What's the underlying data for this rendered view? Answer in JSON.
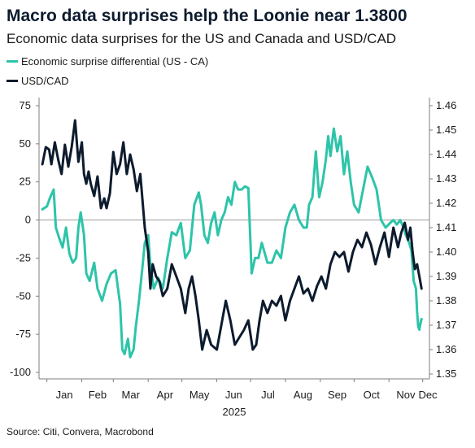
{
  "header": {
    "title": "Macro data surprises help the Loonie near 1.3800",
    "subtitle": "Economic data surprises for the US and Canada and USD/CAD"
  },
  "footer": {
    "source": "Source: Citi, Convera, Macrobond"
  },
  "colors": {
    "surprise": "#2ec4a9",
    "usdcad": "#0d1b2e",
    "zero_line": "#a6a6a6",
    "axis": "#7f7f7f"
  },
  "chart_data": {
    "type": "line",
    "year_label": "2025",
    "x_months": [
      "Jan",
      "Feb",
      "Mar",
      "Apr",
      "May",
      "Jun",
      "Jul",
      "Aug",
      "Sep",
      "Oct",
      "Nov",
      "Dec"
    ],
    "y_left": {
      "ticks": [
        "75",
        "50",
        "25",
        "0",
        "-25",
        "-50",
        "-75",
        "-100"
      ],
      "range": [
        -100,
        75
      ]
    },
    "y_right": {
      "ticks": [
        "1.46",
        "1.45",
        "1.44",
        "1.43",
        "1.42",
        "1.41",
        "1.40",
        "1.39",
        "1.38",
        "1.37",
        "1.36",
        "1.35"
      ],
      "range": [
        1.35,
        1.46
      ]
    },
    "x_range": [
      "2024-12-25",
      "2025-12-07"
    ],
    "series": [
      {
        "name": "Economic surprise differential (US - CA)",
        "axis": "left",
        "x": [
          "2024-12-28",
          "2025-01-01",
          "2025-01-04",
          "2025-01-07",
          "2025-01-09",
          "2025-01-12",
          "2025-01-15",
          "2025-01-18",
          "2025-01-21",
          "2025-01-24",
          "2025-01-27",
          "2025-01-29",
          "2025-01-31",
          "2025-02-03",
          "2025-02-05",
          "2025-02-08",
          "2025-02-12",
          "2025-02-15",
          "2025-02-19",
          "2025-02-23",
          "2025-02-27",
          "2025-03-03",
          "2025-03-07",
          "2025-03-09",
          "2025-03-11",
          "2025-03-14",
          "2025-03-16",
          "2025-03-19",
          "2025-03-21",
          "2025-03-24",
          "2025-03-27",
          "2025-03-29",
          "2025-04-01",
          "2025-04-03",
          "2025-04-06",
          "2025-04-10",
          "2025-04-14",
          "2025-04-18",
          "2025-04-22",
          "2025-04-26",
          "2025-04-30",
          "2025-05-04",
          "2025-05-08",
          "2025-05-12",
          "2025-05-16",
          "2025-05-18",
          "2025-05-21",
          "2025-05-24",
          "2025-05-27",
          "2025-05-30",
          "2025-06-02",
          "2025-06-05",
          "2025-06-08",
          "2025-06-11",
          "2025-06-14",
          "2025-06-17",
          "2025-06-20",
          "2025-06-23",
          "2025-06-26",
          "2025-06-29",
          "2025-07-02",
          "2025-07-05",
          "2025-07-08",
          "2025-07-11",
          "2025-07-16",
          "2025-07-20",
          "2025-07-24",
          "2025-07-28",
          "2025-08-01",
          "2025-08-05",
          "2025-08-09",
          "2025-08-13",
          "2025-08-17",
          "2025-08-20",
          "2025-08-22",
          "2025-08-25",
          "2025-08-28",
          "2025-08-31",
          "2025-09-03",
          "2025-09-06",
          "2025-09-08",
          "2025-09-10",
          "2025-09-13",
          "2025-09-16",
          "2025-09-19",
          "2025-09-22",
          "2025-09-25",
          "2025-09-28",
          "2025-10-01",
          "2025-10-05",
          "2025-10-09",
          "2025-10-13",
          "2025-10-17",
          "2025-10-21",
          "2025-10-25",
          "2025-10-29",
          "2025-11-02",
          "2025-11-05",
          "2025-11-08",
          "2025-11-11",
          "2025-11-14",
          "2025-11-16",
          "2025-11-19",
          "2025-11-21",
          "2025-11-23",
          "2025-11-25",
          "2025-11-26",
          "2025-11-27",
          "2025-11-28",
          "2025-11-29",
          "2025-11-30"
        ],
        "y": [
          7,
          9,
          15,
          20,
          -5,
          -12,
          -18,
          -5,
          -22,
          -28,
          -25,
          -5,
          5,
          -10,
          -35,
          -40,
          -28,
          -45,
          -53,
          -42,
          -35,
          -33,
          -55,
          -85,
          -88,
          -78,
          -90,
          -85,
          -70,
          -52,
          -30,
          -15,
          -10,
          -30,
          -45,
          -38,
          -45,
          -25,
          -8,
          -10,
          -2,
          -25,
          -20,
          10,
          18,
          10,
          -10,
          -15,
          -2,
          5,
          -10,
          0,
          5,
          15,
          10,
          25,
          20,
          20,
          22,
          21,
          -35,
          -25,
          -25,
          -15,
          -28,
          -28,
          -20,
          -25,
          -5,
          5,
          10,
          0,
          -5,
          -5,
          10,
          15,
          45,
          15,
          25,
          40,
          55,
          42,
          60,
          45,
          55,
          30,
          45,
          25,
          10,
          5,
          20,
          35,
          28,
          20,
          0,
          -5,
          -2,
          0,
          -3,
          0,
          -5,
          -10,
          -15,
          -20,
          -40,
          -45,
          -60,
          -70,
          -72,
          -68,
          -65
        ]
      },
      {
        "name": "USD/CAD",
        "axis": "right",
        "x": [
          "2024-12-28",
          "2024-12-31",
          "2025-01-03",
          "2025-01-05",
          "2025-01-08",
          "2025-01-11",
          "2025-01-14",
          "2025-01-17",
          "2025-01-20",
          "2025-01-23",
          "2025-01-26",
          "2025-01-29",
          "2025-02-01",
          "2025-02-03",
          "2025-02-05",
          "2025-02-07",
          "2025-02-09",
          "2025-02-12",
          "2025-02-15",
          "2025-02-18",
          "2025-02-21",
          "2025-02-23",
          "2025-02-26",
          "2025-03-01",
          "2025-03-04",
          "2025-03-07",
          "2025-03-10",
          "2025-03-13",
          "2025-03-16",
          "2025-03-19",
          "2025-03-22",
          "2025-03-25",
          "2025-03-29",
          "2025-04-01",
          "2025-04-03",
          "2025-04-05",
          "2025-04-08",
          "2025-04-11",
          "2025-04-14",
          "2025-04-18",
          "2025-04-22",
          "2025-04-26",
          "2025-04-30",
          "2025-05-04",
          "2025-05-07",
          "2025-05-10",
          "2025-05-13",
          "2025-05-16",
          "2025-05-19",
          "2025-05-23",
          "2025-05-27",
          "2025-06-01",
          "2025-06-05",
          "2025-06-09",
          "2025-06-13",
          "2025-06-17",
          "2025-06-21",
          "2025-06-25",
          "2025-06-29",
          "2025-07-03",
          "2025-07-06",
          "2025-07-09",
          "2025-07-12",
          "2025-07-16",
          "2025-07-20",
          "2025-07-24",
          "2025-07-28",
          "2025-08-01",
          "2025-08-05",
          "2025-08-09",
          "2025-08-13",
          "2025-08-17",
          "2025-08-21",
          "2025-08-25",
          "2025-08-29",
          "2025-09-02",
          "2025-09-06",
          "2025-09-10",
          "2025-09-14",
          "2025-09-18",
          "2025-09-22",
          "2025-09-26",
          "2025-09-30",
          "2025-10-04",
          "2025-10-08",
          "2025-10-12",
          "2025-10-16",
          "2025-10-20",
          "2025-10-24",
          "2025-10-28",
          "2025-11-01",
          "2025-11-05",
          "2025-11-09",
          "2025-11-12",
          "2025-11-15",
          "2025-11-18",
          "2025-11-20",
          "2025-11-22",
          "2025-11-24",
          "2025-11-26",
          "2025-11-28",
          "2025-11-30"
        ],
        "y": [
          1.436,
          1.443,
          1.442,
          1.436,
          1.445,
          1.438,
          1.432,
          1.444,
          1.435,
          1.443,
          1.454,
          1.437,
          1.445,
          1.432,
          1.428,
          1.433,
          1.428,
          1.423,
          1.431,
          1.418,
          1.422,
          1.418,
          1.424,
          1.441,
          1.432,
          1.436,
          1.445,
          1.432,
          1.44,
          1.434,
          1.425,
          1.432,
          1.41,
          1.4,
          1.385,
          1.395,
          1.39,
          1.388,
          1.382,
          1.385,
          1.395,
          1.39,
          1.385,
          1.375,
          1.385,
          1.39,
          1.382,
          1.372,
          1.36,
          1.368,
          1.362,
          1.36,
          1.37,
          1.38,
          1.372,
          1.362,
          1.365,
          1.368,
          1.372,
          1.36,
          1.362,
          1.372,
          1.38,
          1.375,
          1.38,
          1.378,
          1.382,
          1.372,
          1.38,
          1.385,
          1.39,
          1.383,
          1.385,
          1.38,
          1.386,
          1.39,
          1.385,
          1.395,
          1.4,
          1.398,
          1.4,
          1.392,
          1.4,
          1.405,
          1.402,
          1.408,
          1.403,
          1.395,
          1.402,
          1.408,
          1.398,
          1.41,
          1.402,
          1.408,
          1.412,
          1.405,
          1.41,
          1.4,
          1.393,
          1.395,
          1.39,
          1.385
        ]
      }
    ]
  }
}
